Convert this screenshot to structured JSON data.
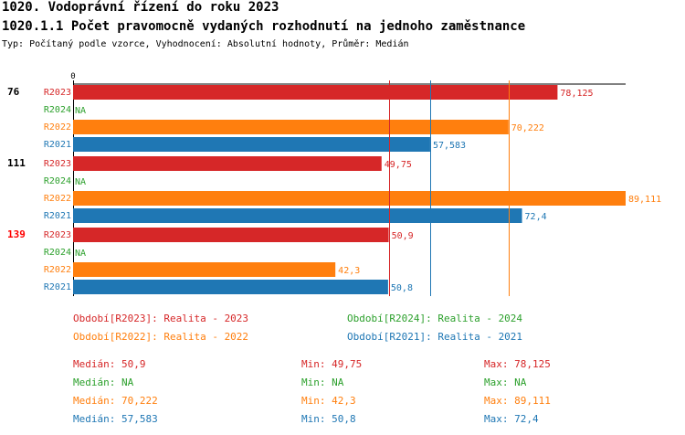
{
  "header": {
    "title": "1020. Vodoprávní řízení do roku 2023",
    "subtitle": "1020.1.1 Počet pravomocně vydaných rozhodnutí na jednoho zaměstnance",
    "type_line": "Typ: Počítaný podle vzorce, Vyhodnocení: Absolutní hodnoty, Průměr: Medián"
  },
  "colors": {
    "R2023": "#d62728",
    "R2024": "#2ca02c",
    "R2022": "#ff7f0e",
    "R2021": "#1f77b4",
    "highlight": "#ff0000",
    "text": "#000000"
  },
  "chart_data": {
    "type": "bar",
    "orientation": "horizontal",
    "xlim": [
      0,
      89.111
    ],
    "x_axis_tick": "0",
    "series_order": [
      "R2023",
      "R2024",
      "R2022",
      "R2021"
    ],
    "groups": [
      {
        "label": "76",
        "highlight": false,
        "bars": [
          {
            "series": "R2023",
            "value": 78.125,
            "label": "78,125"
          },
          {
            "series": "R2024",
            "value": null,
            "label": "NA"
          },
          {
            "series": "R2022",
            "value": 70.222,
            "label": "70,222"
          },
          {
            "series": "R2021",
            "value": 57.583,
            "label": "57,583"
          }
        ]
      },
      {
        "label": "111",
        "highlight": false,
        "bars": [
          {
            "series": "R2023",
            "value": 49.75,
            "label": "49,75"
          },
          {
            "series": "R2024",
            "value": null,
            "label": "NA"
          },
          {
            "series": "R2022",
            "value": 89.111,
            "label": "89,111"
          },
          {
            "series": "R2021",
            "value": 72.4,
            "label": "72,4"
          }
        ]
      },
      {
        "label": "139",
        "highlight": true,
        "bars": [
          {
            "series": "R2023",
            "value": 50.9,
            "label": "50,9"
          },
          {
            "series": "R2024",
            "value": null,
            "label": "NA"
          },
          {
            "series": "R2022",
            "value": 42.3,
            "label": "42,3"
          },
          {
            "series": "R2021",
            "value": 50.8,
            "label": "50,8"
          }
        ]
      }
    ],
    "median_lines": [
      {
        "series": "R2023",
        "value": 50.9
      },
      {
        "series": "R2022",
        "value": 70.222
      },
      {
        "series": "R2021",
        "value": 57.583
      }
    ],
    "legend": [
      {
        "series": "R2023",
        "text": "Období[R2023]: Realita - 2023"
      },
      {
        "series": "R2024",
        "text": "Období[R2024]: Realita - 2024"
      },
      {
        "series": "R2022",
        "text": "Období[R2022]: Realita - 2022"
      },
      {
        "series": "R2021",
        "text": "Období[R2021]: Realita - 2021"
      }
    ],
    "stats": [
      {
        "series": "R2023",
        "median": "Medián: 50,9",
        "min": "Min: 49,75",
        "max": "Max: 78,125"
      },
      {
        "series": "R2024",
        "median": "Medián: NA",
        "min": "Min: NA",
        "max": "Max: NA"
      },
      {
        "series": "R2022",
        "median": "Medián: 70,222",
        "min": "Min: 42,3",
        "max": "Max: 89,111"
      },
      {
        "series": "R2021",
        "median": "Medián: 57,583",
        "min": "Min: 50,8",
        "max": "Max: 72,4"
      }
    ]
  }
}
